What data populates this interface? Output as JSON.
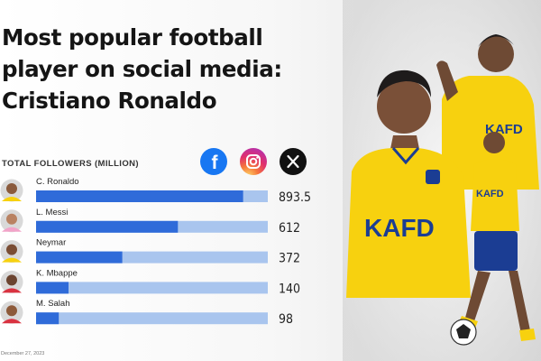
{
  "title": {
    "line1": "Most popular football",
    "line2": "player on social media:",
    "line3": "Cristiano Ronaldo"
  },
  "social_icons": [
    "facebook-icon",
    "instagram-icon",
    "x-icon"
  ],
  "footnote": "December 27, 2023",
  "colors": {
    "bar": "#2f6bd9",
    "bar_track": "#a9c5ee",
    "club_yellow": "#f7d10f",
    "club_blue": "#1b3d93"
  },
  "chart_data": {
    "type": "bar",
    "orientation": "horizontal",
    "title": "TOTAL FOLLOWERS (MILLION)",
    "categories": [
      "C. Ronaldo",
      "L. Messi",
      "Neymar",
      "K. Mbappe",
      "M. Salah"
    ],
    "values": [
      893.5,
      612,
      372,
      140,
      98
    ],
    "value_labels": [
      "893.5",
      "612",
      "372",
      "140",
      "98"
    ],
    "xlim": [
      0,
      1000
    ],
    "xlabel": "",
    "ylabel": ""
  },
  "player_graphic": {
    "kit_sponsor": "KAFD"
  }
}
